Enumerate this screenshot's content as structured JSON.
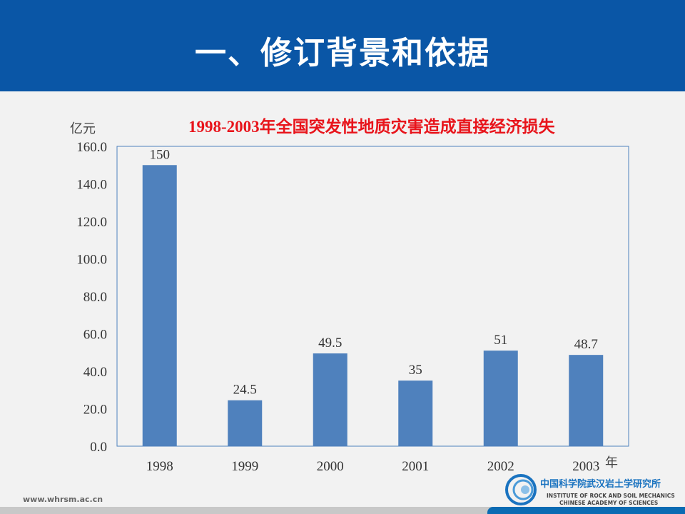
{
  "header": {
    "title": "一、修订背景和依据"
  },
  "footer": {
    "url": "www.whrsm.ac.cn",
    "logo_cn": "中国科学院武汉岩土学研究所",
    "logo_en1": "INSTITUTE OF ROCK AND SOIL MECHANICS",
    "logo_en2": "CHINESE ACADEMY OF SCIENCES"
  },
  "colors": {
    "header": "#0a56a6",
    "bar": "#4f81bd",
    "title": "#e8141b"
  },
  "chart_data": {
    "type": "bar",
    "title": "1998-2003年全国突发性地质灾害造成直接经济损失",
    "ylabel": "亿元",
    "xlabel": "年",
    "categories": [
      "1998",
      "1999",
      "2000",
      "2001",
      "2002",
      "2003"
    ],
    "values": [
      150,
      24.5,
      49.5,
      35,
      51,
      48.7
    ],
    "data_labels": [
      "150",
      "24.5",
      "49.5",
      "35",
      "51",
      "48.7"
    ],
    "ylim": [
      0,
      160
    ],
    "yticks": [
      "0.0",
      "20.0",
      "40.0",
      "60.0",
      "80.0",
      "100.0",
      "120.0",
      "140.0",
      "160.0"
    ],
    "grid": false,
    "legend": "none"
  }
}
